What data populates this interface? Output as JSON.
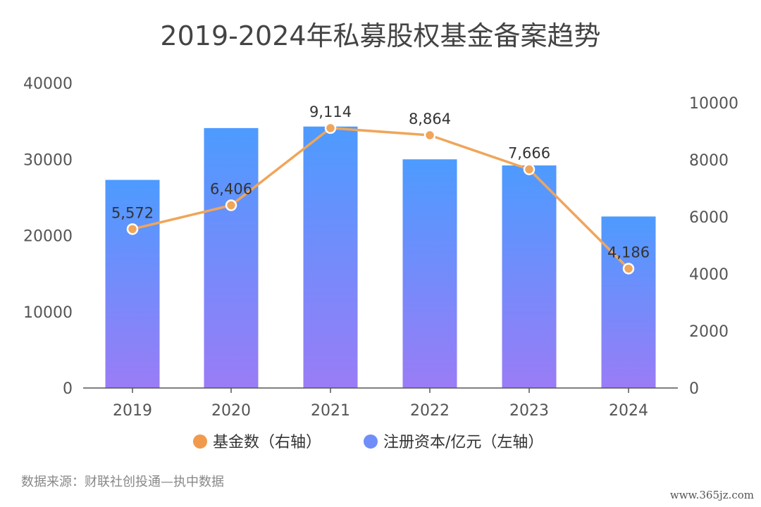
{
  "chart_data": {
    "type": "bar",
    "title": "2019-2024年私募股权基金备案趋势",
    "categories": [
      "2019",
      "2020",
      "2021",
      "2022",
      "2023",
      "2024"
    ],
    "series": [
      {
        "name": "注册资本/亿元（左轴）",
        "type": "bar",
        "axis": "left",
        "values": [
          27300,
          34100,
          34300,
          30000,
          29200,
          22500
        ]
      },
      {
        "name": "基金数（右轴）",
        "type": "line",
        "axis": "right",
        "values": [
          5572,
          6406,
          9114,
          8864,
          7666,
          4186
        ],
        "labels": [
          "5,572",
          "6,406",
          "9,114",
          "8,864",
          "7,666",
          "4,186"
        ]
      }
    ],
    "y_left": {
      "min": 0,
      "max": 40000,
      "ticks": [
        "0",
        "10000",
        "20000",
        "30000",
        "40000"
      ]
    },
    "y_right": {
      "min": 0,
      "max": 10000,
      "ticks": [
        "0",
        "2000",
        "4000",
        "6000",
        "8000",
        "10000"
      ]
    },
    "legend_position": "bottom",
    "grid": false
  },
  "colors": {
    "bar_top": "#4d9bff",
    "bar_bottom": "#9a7cf6",
    "line": "#f0a55a",
    "legend_line": "#f09a4e",
    "legend_bar": "#6f8ef7",
    "axis": "#555555"
  },
  "source": "数据来源：财联社创投通—执中数据",
  "watermark": "www.365jz.com"
}
